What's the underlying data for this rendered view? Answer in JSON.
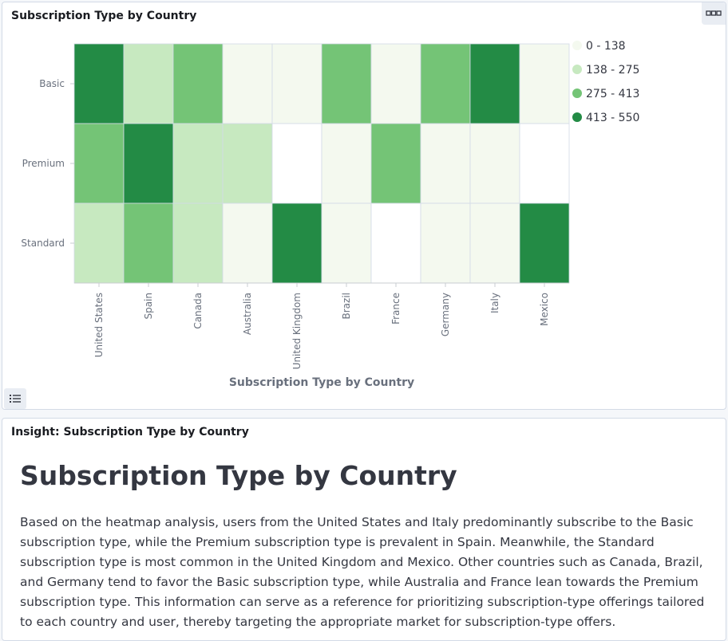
{
  "chart_panel": {
    "title": "Subscription Type by Country",
    "options_icon": "dots-icon",
    "legend_toggle_icon": "list-icon"
  },
  "insight_panel": {
    "title": "Insight: Subscription Type by Country",
    "heading": "Subscription Type by Country",
    "body": "Based on the heatmap analysis, users from the United States and Italy predominantly subscribe to the Basic subscription type, while the Premium subscription type is prevalent in Spain. Meanwhile, the Standard subscription type is most common in the United Kingdom and Mexico. Other countries such as Canada, Brazil, and Germany tend to favor the Basic subscription type, while Australia and France lean towards the Premium subscription type. This information can serve as a reference for prioritizing subscription-type offerings tailored to each country and user, thereby targeting the appropriate market for subscription-type offers."
  },
  "chart_data": {
    "type": "heatmap",
    "title": "",
    "xlabel": "Subscription Type by Country",
    "ylabel": "",
    "x_categories": [
      "United States",
      "Spain",
      "Canada",
      "Australia",
      "United Kingdom",
      "Brazil",
      "France",
      "Germany",
      "Italy",
      "Mexico"
    ],
    "y_categories": [
      "Basic",
      "Premium",
      "Standard"
    ],
    "bins": [
      {
        "label": "0 - 138",
        "min": 0,
        "max": 138,
        "color": "#f4f9ef"
      },
      {
        "label": "138 - 275",
        "min": 138,
        "max": 275,
        "color": "#c7e9c0"
      },
      {
        "label": "275 - 413",
        "min": 275,
        "max": 413,
        "color": "#74c476"
      },
      {
        "label": "413 - 550",
        "min": 413,
        "max": 550,
        "color": "#238b45"
      }
    ],
    "values": [
      [
        500,
        200,
        340,
        100,
        100,
        340,
        100,
        340,
        500,
        100
      ],
      [
        340,
        500,
        200,
        200,
        null,
        100,
        340,
        100,
        100,
        null
      ],
      [
        200,
        340,
        200,
        100,
        500,
        100,
        null,
        100,
        100,
        500
      ]
    ],
    "legend_position": "right",
    "grid": true
  }
}
